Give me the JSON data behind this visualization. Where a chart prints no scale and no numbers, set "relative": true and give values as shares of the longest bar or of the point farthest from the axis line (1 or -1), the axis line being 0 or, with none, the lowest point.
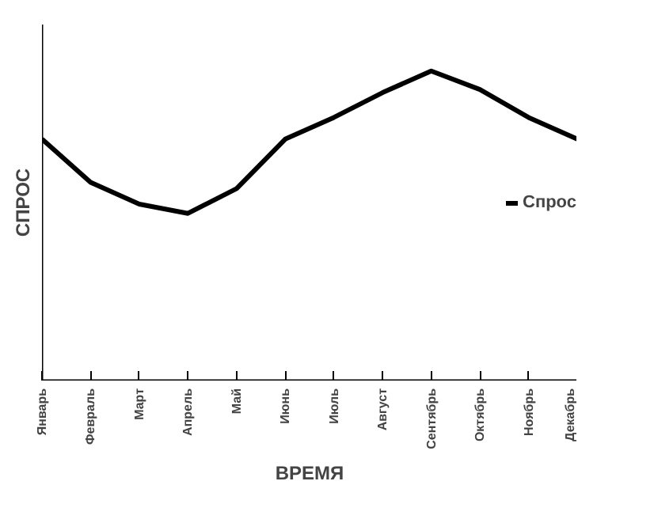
{
  "chart_data": {
    "type": "line",
    "relative": true,
    "xlabel": "ВРЕМЯ",
    "ylabel": "СПРОС",
    "categories": [
      "Январь",
      "Февраль",
      "Март",
      "Апрель",
      "Май",
      "Июнь",
      "Июль",
      "Август",
      "Сентябрь",
      "Октябрь",
      "Ноябрь",
      "Декабрь"
    ],
    "series": [
      {
        "name": "Спрос",
        "color": "#000000",
        "values": [
          0.78,
          0.64,
          0.57,
          0.54,
          0.62,
          0.78,
          0.85,
          0.93,
          1,
          0.94,
          0.85,
          0.78
        ]
      }
    ],
    "legend": "right"
  }
}
